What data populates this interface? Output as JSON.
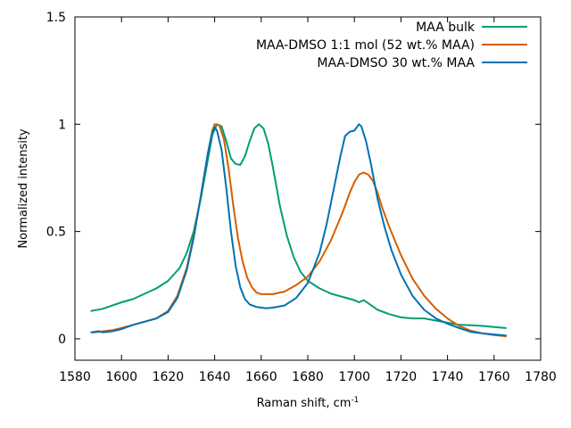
{
  "chart_data": {
    "type": "line",
    "xlabel_main": "Raman shift, cm",
    "xlabel_sup": "-1",
    "ylabel": "Normalized intensity",
    "xlim": [
      1580,
      1780
    ],
    "ylim": [
      -0.1,
      1.5
    ],
    "xticks": [
      1580,
      1600,
      1620,
      1640,
      1660,
      1680,
      1700,
      1720,
      1740,
      1760,
      1780
    ],
    "yticks": [
      0,
      0.5,
      1,
      1.5
    ],
    "ytick_labels": [
      "0",
      "0.5",
      "1",
      "1.5"
    ],
    "grid": false,
    "legend_position": "top-right",
    "series": [
      {
        "name": "MAA bulk",
        "color": "#009e73",
        "points": [
          [
            1587,
            0.13
          ],
          [
            1592,
            0.14
          ],
          [
            1596,
            0.155
          ],
          [
            1600,
            0.17
          ],
          [
            1605,
            0.185
          ],
          [
            1610,
            0.21
          ],
          [
            1615,
            0.235
          ],
          [
            1620,
            0.27
          ],
          [
            1625,
            0.33
          ],
          [
            1628,
            0.4
          ],
          [
            1631,
            0.5
          ],
          [
            1634,
            0.65
          ],
          [
            1637,
            0.83
          ],
          [
            1639,
            0.95
          ],
          [
            1641,
            1.0
          ],
          [
            1643,
            0.99
          ],
          [
            1645,
            0.92
          ],
          [
            1647,
            0.84
          ],
          [
            1649,
            0.815
          ],
          [
            1651,
            0.81
          ],
          [
            1653,
            0.85
          ],
          [
            1655,
            0.92
          ],
          [
            1657,
            0.98
          ],
          [
            1659,
            1.0
          ],
          [
            1661,
            0.98
          ],
          [
            1663,
            0.91
          ],
          [
            1665,
            0.8
          ],
          [
            1668,
            0.62
          ],
          [
            1671,
            0.48
          ],
          [
            1674,
            0.38
          ],
          [
            1677,
            0.31
          ],
          [
            1680,
            0.27
          ],
          [
            1685,
            0.235
          ],
          [
            1690,
            0.21
          ],
          [
            1695,
            0.195
          ],
          [
            1700,
            0.18
          ],
          [
            1702,
            0.17
          ],
          [
            1704,
            0.18
          ],
          [
            1706,
            0.165
          ],
          [
            1708,
            0.15
          ],
          [
            1710,
            0.135
          ],
          [
            1715,
            0.115
          ],
          [
            1720,
            0.1
          ],
          [
            1725,
            0.095
          ],
          [
            1730,
            0.095
          ],
          [
            1735,
            0.085
          ],
          [
            1740,
            0.075
          ],
          [
            1745,
            0.065
          ],
          [
            1750,
            0.063
          ],
          [
            1755,
            0.06
          ],
          [
            1760,
            0.055
          ],
          [
            1765,
            0.05
          ]
        ]
      },
      {
        "name": "MAA-DMSO 1:1 mol (52 wt.% MAA)",
        "color": "#d55e00",
        "points": [
          [
            1588,
            0.03
          ],
          [
            1592,
            0.035
          ],
          [
            1596,
            0.04
          ],
          [
            1600,
            0.05
          ],
          [
            1605,
            0.065
          ],
          [
            1610,
            0.08
          ],
          [
            1615,
            0.095
          ],
          [
            1620,
            0.13
          ],
          [
            1624,
            0.2
          ],
          [
            1628,
            0.33
          ],
          [
            1631,
            0.48
          ],
          [
            1634,
            0.66
          ],
          [
            1637,
            0.86
          ],
          [
            1639,
            0.97
          ],
          [
            1640,
            1.0
          ],
          [
            1642,
            0.995
          ],
          [
            1644,
            0.93
          ],
          [
            1646,
            0.79
          ],
          [
            1648,
            0.62
          ],
          [
            1650,
            0.47
          ],
          [
            1652,
            0.36
          ],
          [
            1654,
            0.285
          ],
          [
            1656,
            0.24
          ],
          [
            1658,
            0.215
          ],
          [
            1660,
            0.208
          ],
          [
            1665,
            0.208
          ],
          [
            1670,
            0.22
          ],
          [
            1675,
            0.25
          ],
          [
            1680,
            0.29
          ],
          [
            1685,
            0.36
          ],
          [
            1690,
            0.46
          ],
          [
            1695,
            0.59
          ],
          [
            1698,
            0.68
          ],
          [
            1700,
            0.73
          ],
          [
            1702,
            0.765
          ],
          [
            1704,
            0.775
          ],
          [
            1706,
            0.765
          ],
          [
            1708,
            0.735
          ],
          [
            1710,
            0.68
          ],
          [
            1712,
            0.61
          ],
          [
            1715,
            0.52
          ],
          [
            1720,
            0.39
          ],
          [
            1725,
            0.28
          ],
          [
            1730,
            0.2
          ],
          [
            1735,
            0.14
          ],
          [
            1740,
            0.095
          ],
          [
            1745,
            0.06
          ],
          [
            1750,
            0.038
          ],
          [
            1755,
            0.025
          ],
          [
            1760,
            0.017
          ],
          [
            1765,
            0.012
          ]
        ]
      },
      {
        "name": "MAA-DMSO 30 wt.% MAA",
        "color": "#0072b2",
        "points": [
          [
            1587,
            0.03
          ],
          [
            1590,
            0.035
          ],
          [
            1592,
            0.03
          ],
          [
            1596,
            0.035
          ],
          [
            1600,
            0.045
          ],
          [
            1605,
            0.065
          ],
          [
            1610,
            0.08
          ],
          [
            1615,
            0.095
          ],
          [
            1620,
            0.125
          ],
          [
            1624,
            0.19
          ],
          [
            1628,
            0.32
          ],
          [
            1631,
            0.47
          ],
          [
            1634,
            0.66
          ],
          [
            1637,
            0.86
          ],
          [
            1639,
            0.965
          ],
          [
            1640,
            0.985
          ],
          [
            1641,
            0.97
          ],
          [
            1643,
            0.88
          ],
          [
            1645,
            0.7
          ],
          [
            1647,
            0.5
          ],
          [
            1649,
            0.34
          ],
          [
            1651,
            0.24
          ],
          [
            1653,
            0.185
          ],
          [
            1655,
            0.16
          ],
          [
            1658,
            0.148
          ],
          [
            1662,
            0.142
          ],
          [
            1665,
            0.145
          ],
          [
            1670,
            0.155
          ],
          [
            1675,
            0.19
          ],
          [
            1680,
            0.26
          ],
          [
            1685,
            0.4
          ],
          [
            1688,
            0.53
          ],
          [
            1691,
            0.69
          ],
          [
            1694,
            0.85
          ],
          [
            1696,
            0.945
          ],
          [
            1698,
            0.965
          ],
          [
            1700,
            0.97
          ],
          [
            1702,
            1.0
          ],
          [
            1703,
            0.99
          ],
          [
            1705,
            0.92
          ],
          [
            1707,
            0.82
          ],
          [
            1710,
            0.65
          ],
          [
            1713,
            0.52
          ],
          [
            1716,
            0.41
          ],
          [
            1720,
            0.3
          ],
          [
            1725,
            0.2
          ],
          [
            1730,
            0.135
          ],
          [
            1735,
            0.095
          ],
          [
            1740,
            0.07
          ],
          [
            1745,
            0.05
          ],
          [
            1750,
            0.032
          ],
          [
            1755,
            0.025
          ],
          [
            1760,
            0.02
          ],
          [
            1765,
            0.015
          ]
        ]
      }
    ]
  }
}
